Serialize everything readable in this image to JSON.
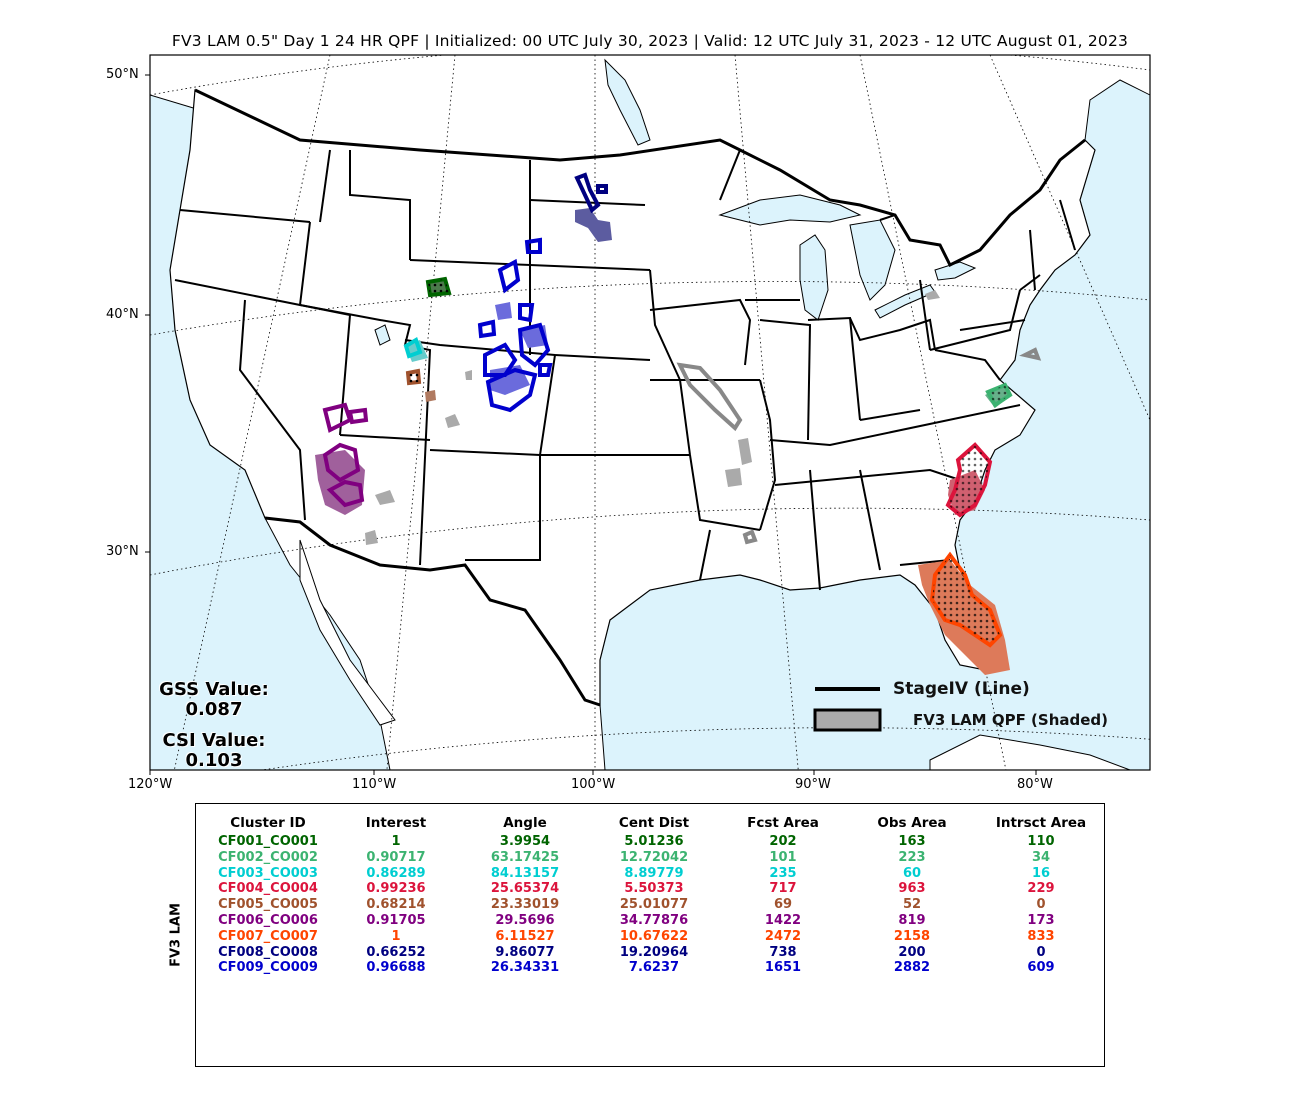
{
  "title": "FV3 LAM 0.5\" Day 1 24 HR QPF | Initialized: 00 UTC July 30, 2023 | Valid: 12 UTC July 31, 2023 - 12 UTC August 01, 2023",
  "lat_labels": [
    "50°N",
    "40°N",
    "30°N"
  ],
  "lon_labels": [
    "120°W",
    "110°W",
    "100°W",
    "90°W",
    "80°W"
  ],
  "scores": {
    "gss_label": "GSS Value:",
    "gss_value": "0.087",
    "csi_label": "CSI Value:",
    "csi_value": "0.103"
  },
  "legend": {
    "line_label": "StageIV (Line)",
    "shaded_label": "FV3 LAM QPF (Shaded)"
  },
  "colors": {
    "ocean": "#dcf3fc",
    "land": "#ffffff",
    "shaded_default": "#aaaaaa",
    "obs_default": "#888888"
  },
  "table": {
    "side_label": "FV3 LAM",
    "headers": [
      "Cluster ID",
      "Interest",
      "Angle",
      "Cent Dist",
      "Fcst Area",
      "Obs Area",
      "Intrsct Area"
    ],
    "rows": [
      {
        "color": "#006400",
        "cells": [
          "CF001_CO001",
          "1",
          "3.9954",
          "5.01236",
          "202",
          "163",
          "110"
        ]
      },
      {
        "color": "#3cb371",
        "cells": [
          "CF002_CO002",
          "0.90717",
          "63.17425",
          "12.72042",
          "101",
          "223",
          "34"
        ]
      },
      {
        "color": "#00ced1",
        "cells": [
          "CF003_CO003",
          "0.86289",
          "84.13157",
          "8.89779",
          "235",
          "60",
          "16"
        ]
      },
      {
        "color": "#dc143c",
        "cells": [
          "CF004_CO004",
          "0.99236",
          "25.65374",
          "5.50373",
          "717",
          "963",
          "229"
        ]
      },
      {
        "color": "#a0522d",
        "cells": [
          "CF005_CO005",
          "0.68214",
          "23.33019",
          "25.01077",
          "69",
          "52",
          "0"
        ]
      },
      {
        "color": "#800080",
        "cells": [
          "CF006_CO006",
          "0.91705",
          "29.5696",
          "34.77876",
          "1422",
          "819",
          "173"
        ]
      },
      {
        "color": "#ff4500",
        "cells": [
          "CF007_CO007",
          "1",
          "6.11527",
          "10.67622",
          "2472",
          "2158",
          "833"
        ]
      },
      {
        "color": "#000080",
        "cells": [
          "CF008_CO008",
          "0.66252",
          "9.86077",
          "19.20964",
          "738",
          "200",
          "0"
        ]
      },
      {
        "color": "#0000cd",
        "cells": [
          "CF009_CO009",
          "0.96688",
          "26.34331",
          "7.6237",
          "1651",
          "2882",
          "609"
        ]
      }
    ]
  }
}
